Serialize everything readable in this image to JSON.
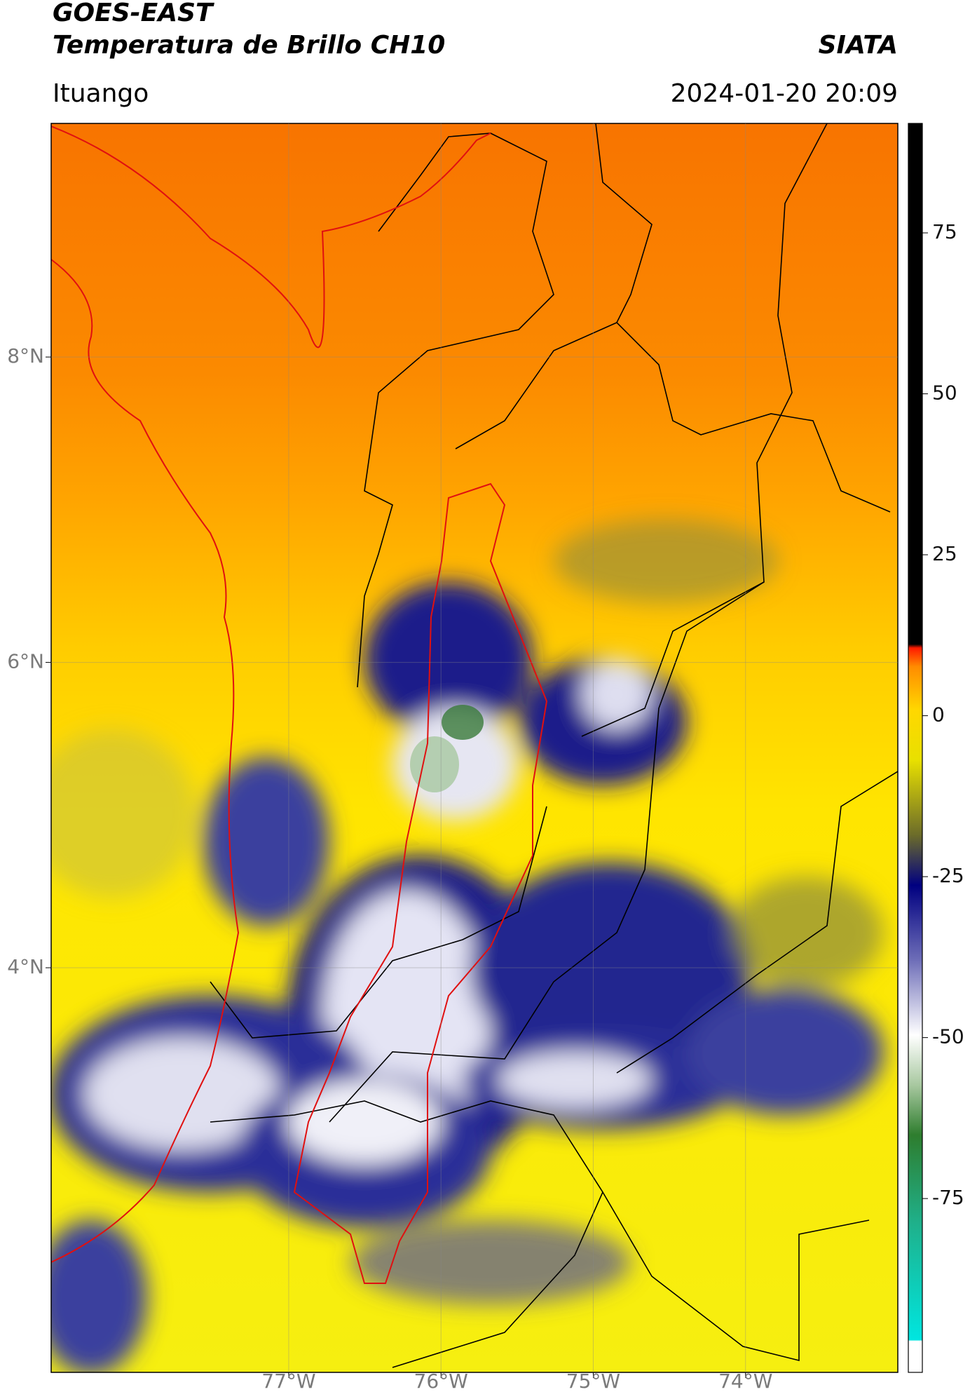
{
  "header": {
    "title": "GOES-EAST",
    "subtitle": "Temperatura de Brillo CH10",
    "source": "SIATA",
    "location": "Ituango",
    "datetime": "2024-01-20 20:09"
  },
  "map": {
    "lonlim": [
      -78.56,
      -73.0
    ],
    "latlim": [
      1.35,
      9.53
    ],
    "lonticks": [
      {
        "value": -77,
        "label": "77°W"
      },
      {
        "value": -76,
        "label": "76°W"
      },
      {
        "value": -75,
        "label": "75°W"
      },
      {
        "value": -74,
        "label": "74°W"
      }
    ],
    "latticks": [
      {
        "value": 8,
        "label": "8°N"
      },
      {
        "value": 6,
        "label": "6°N"
      },
      {
        "value": 4,
        "label": "4°N"
      }
    ]
  },
  "colorbar": {
    "lim": [
      -102,
      92
    ],
    "ticks": [
      -75,
      -50,
      -25,
      0,
      25,
      50,
      75
    ]
  }
}
